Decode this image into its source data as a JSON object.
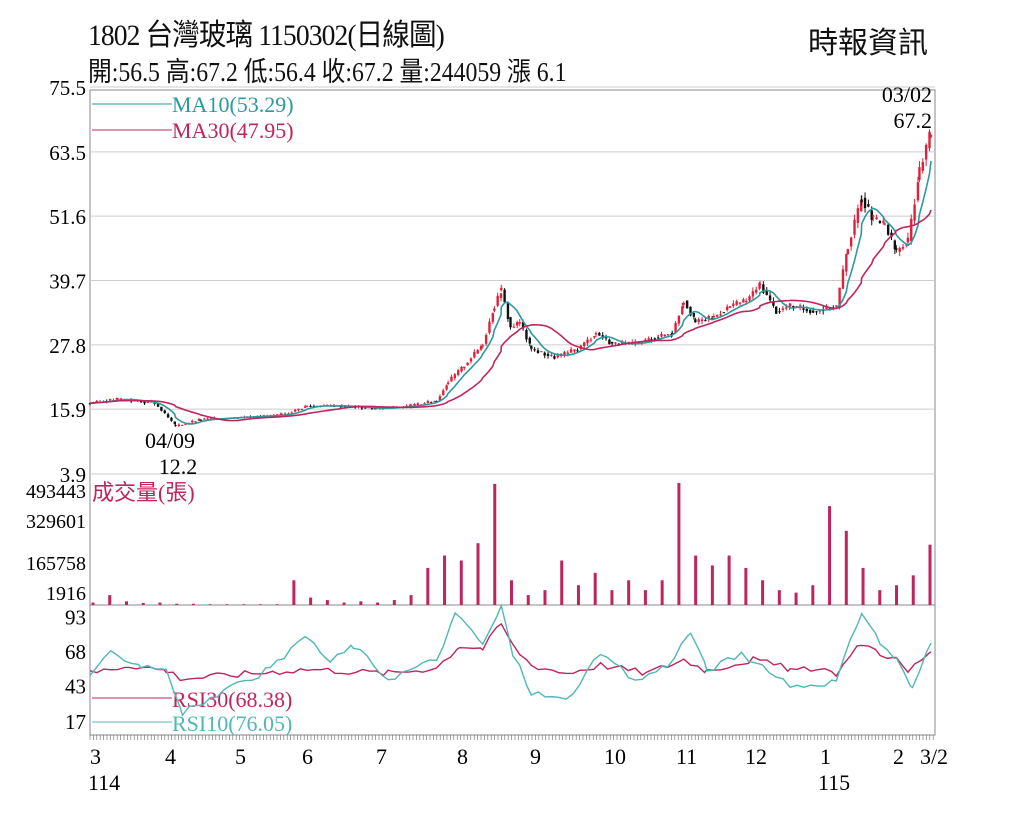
{
  "header": {
    "title": "1802  台灣玻璃 1150302(日線圖)",
    "summary": "開:56.5 高:67.2 低:56.4 收:67.2 量:244059 漲 6.1",
    "source": "時報資訊"
  },
  "chart_data": [
    {
      "type": "candlestick",
      "panel": "price",
      "yticks": [
        "75.5",
        "63.5",
        "51.6",
        "39.7",
        "27.8",
        "15.9",
        "3.9"
      ],
      "ylim": [
        3.9,
        75.5
      ],
      "legend": [
        {
          "name": "MA10(53.29)",
          "color": "#2a9a9f"
        },
        {
          "name": "MA30(47.95)",
          "color": "#c0245e"
        }
      ],
      "annotations": [
        {
          "date": "03/02",
          "value": "67.2"
        },
        {
          "date": "04/09",
          "value": "12.2"
        }
      ],
      "up_color": "#e0203a",
      "down_color": "#111111",
      "close": [
        [
          "2025-03-03",
          17.0
        ],
        [
          "2025-03-15",
          17.8
        ],
        [
          "2025-03-31",
          17.0
        ],
        [
          "2025-04-09",
          12.8
        ],
        [
          "2025-04-20",
          14.0
        ],
        [
          "2025-05-10",
          14.5
        ],
        [
          "2025-05-25",
          14.8
        ],
        [
          "2025-06-05",
          16.5
        ],
        [
          "2025-06-20",
          16.5
        ],
        [
          "2025-07-05",
          16.0
        ],
        [
          "2025-07-20",
          16.5
        ],
        [
          "2025-07-31",
          17.5
        ],
        [
          "2025-08-05",
          21
        ],
        [
          "2025-08-12",
          24
        ],
        [
          "2025-08-20",
          28
        ],
        [
          "2025-08-25",
          35
        ],
        [
          "2025-08-28",
          38
        ],
        [
          "2025-09-01",
          31
        ],
        [
          "2025-09-05",
          32
        ],
        [
          "2025-09-10",
          27
        ],
        [
          "2025-09-20",
          25.5
        ],
        [
          "2025-09-30",
          27
        ],
        [
          "2025-10-08",
          30
        ],
        [
          "2025-10-15",
          28
        ],
        [
          "2025-10-25",
          28
        ],
        [
          "2025-11-01",
          29
        ],
        [
          "2025-11-10",
          30
        ],
        [
          "2025-11-15",
          36
        ],
        [
          "2025-11-20",
          32
        ],
        [
          "2025-11-28",
          33
        ],
        [
          "2025-12-05",
          35
        ],
        [
          "2025-12-12",
          36
        ],
        [
          "2025-12-18",
          39
        ],
        [
          "2025-12-25",
          34
        ],
        [
          "2025-12-31",
          35
        ],
        [
          "2026-01-10",
          34
        ],
        [
          "2026-01-20",
          35
        ],
        [
          "2026-01-25",
          46
        ],
        [
          "2026-01-31",
          55
        ],
        [
          "2026-02-05",
          51
        ],
        [
          "2026-02-10",
          50
        ],
        [
          "2026-02-15",
          45
        ],
        [
          "2026-02-20",
          47
        ],
        [
          "2026-02-25",
          60
        ],
        [
          "2026-03-02",
          67.2
        ]
      ]
    },
    {
      "type": "bar",
      "panel": "volume",
      "label": "成交量(張)",
      "yticks": [
        "493443",
        "329601",
        "165758",
        "1916"
      ],
      "ylim": [
        0,
        530000
      ],
      "color": "#c0245e",
      "values": [
        10000,
        40000,
        15000,
        8000,
        10000,
        5000,
        5000,
        3000,
        3000,
        3000,
        3000,
        3000,
        100000,
        30000,
        20000,
        10000,
        15000,
        10000,
        20000,
        40000,
        150000,
        200000,
        180000,
        250000,
        490000,
        100000,
        40000,
        60000,
        180000,
        80000,
        130000,
        60000,
        100000,
        60000,
        100000,
        493443,
        200000,
        160000,
        200000,
        150000,
        100000,
        60000,
        50000,
        80000,
        400000,
        300000,
        150000,
        60000,
        80000,
        120000,
        244059
      ]
    },
    {
      "type": "line",
      "panel": "rsi",
      "yticks": [
        "93",
        "68",
        "43",
        "17"
      ],
      "ylim": [
        7,
        100
      ],
      "series": [
        {
          "name": "RSI30(68.38)",
          "color": "#c0245e",
          "points": [
            [
              "2025-03-03",
              52
            ],
            [
              "2025-03-20",
              58
            ],
            [
              "2025-04-05",
              54
            ],
            [
              "2025-04-12",
              48
            ],
            [
              "2025-06-05",
              55
            ],
            [
              "2025-07-10",
              52
            ],
            [
              "2025-07-31",
              56
            ],
            [
              "2025-08-10",
              72
            ],
            [
              "2025-08-20",
              70
            ],
            [
              "2025-08-28",
              88
            ],
            [
              "2025-09-02",
              72
            ],
            [
              "2025-09-10",
              58
            ],
            [
              "2025-09-25",
              52
            ],
            [
              "2025-10-10",
              58
            ],
            [
              "2025-10-30",
              52
            ],
            [
              "2025-11-15",
              62
            ],
            [
              "2025-11-25",
              54
            ],
            [
              "2025-12-15",
              62
            ],
            [
              "2025-12-31",
              55
            ],
            [
              "2026-01-20",
              52
            ],
            [
              "2026-01-31",
              74
            ],
            [
              "2026-02-08",
              67
            ],
            [
              "2026-02-15",
              62
            ],
            [
              "2026-02-20",
              53
            ],
            [
              "2026-03-02",
              68.38
            ]
          ]
        },
        {
          "name": "RSI10(76.05)",
          "color": "#4fb8b5",
          "points": [
            [
              "2025-03-03",
              48
            ],
            [
              "2025-03-12",
              67
            ],
            [
              "2025-03-25",
              58
            ],
            [
              "2025-04-05",
              55
            ],
            [
              "2025-04-12",
              23
            ],
            [
              "2025-05-20",
              55
            ],
            [
              "2025-06-05",
              78
            ],
            [
              "2025-06-15",
              60
            ],
            [
              "2025-06-25",
              72
            ],
            [
              "2025-07-10",
              48
            ],
            [
              "2025-07-31",
              62
            ],
            [
              "2025-08-08",
              94
            ],
            [
              "2025-08-15",
              84
            ],
            [
              "2025-08-20",
              72
            ],
            [
              "2025-08-28",
              100
            ],
            [
              "2025-09-02",
              66
            ],
            [
              "2025-09-10",
              38
            ],
            [
              "2025-09-25",
              32
            ],
            [
              "2025-10-10",
              66
            ],
            [
              "2025-10-25",
              46
            ],
            [
              "2025-11-08",
              58
            ],
            [
              "2025-11-18",
              82
            ],
            [
              "2025-11-25",
              54
            ],
            [
              "2025-12-10",
              66
            ],
            [
              "2025-12-31",
              42
            ],
            [
              "2026-01-20",
              46
            ],
            [
              "2026-01-31",
              97
            ],
            [
              "2026-02-08",
              74
            ],
            [
              "2026-02-15",
              62
            ],
            [
              "2026-02-22",
              40
            ],
            [
              "2026-03-02",
              76.05
            ]
          ]
        }
      ]
    },
    {
      "type": "axis",
      "xticks": [
        "3",
        "4",
        "5",
        "6",
        "7",
        "8",
        "9",
        "10",
        "11",
        "12",
        "1",
        "2",
        "3/2"
      ],
      "years": [
        "114",
        "115"
      ]
    }
  ]
}
